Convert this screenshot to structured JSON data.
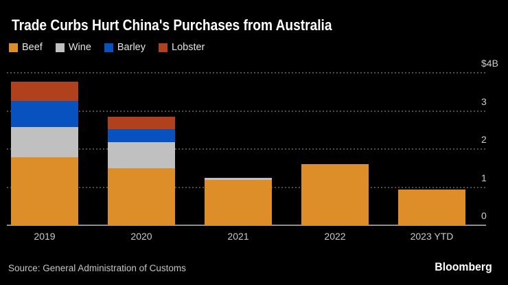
{
  "title": "Trade Curbs Hurt China's Purchases from Australia",
  "source": "Source: General Administration of Customs",
  "brand": "Bloomberg",
  "colors": {
    "background": "#000000",
    "title_text": "#FFFFFF",
    "axis_text": "#CDCDCD",
    "gridline": "#4F4F4F",
    "baseline": "#8F8F8F",
    "beef": "#DE8E28",
    "wine": "#C0C0C0",
    "barley": "#0752BF",
    "lobster": "#B1401D"
  },
  "chart_data": {
    "type": "bar",
    "stacked": true,
    "title": "Trade Curbs Hurt China's Purchases from Australia",
    "categories": [
      "2019",
      "2020",
      "2021",
      "2022",
      "2023 YTD"
    ],
    "series": [
      {
        "name": "Beef",
        "color": "#DE8E28",
        "values": [
          1.78,
          1.5,
          1.19,
          1.61,
          0.94
        ]
      },
      {
        "name": "Wine",
        "color": "#C0C0C0",
        "values": [
          0.8,
          0.68,
          0.06,
          0,
          0
        ]
      },
      {
        "name": "Barley",
        "color": "#0752BF",
        "values": [
          0.68,
          0.35,
          0,
          0,
          0
        ]
      },
      {
        "name": "Lobster",
        "color": "#B1401D",
        "values": [
          0.51,
          0.32,
          0,
          0,
          0
        ]
      }
    ],
    "totals": [
      3.77,
      2.85,
      1.25,
      1.61,
      0.94
    ],
    "ylim": [
      0,
      4
    ],
    "yticks": [
      0,
      1,
      2,
      3,
      4
    ],
    "ytick_labels": [
      "0",
      "1",
      "2",
      "3",
      "$4B"
    ],
    "grid": "horizontal-dotted",
    "legend_position": "top-left"
  }
}
